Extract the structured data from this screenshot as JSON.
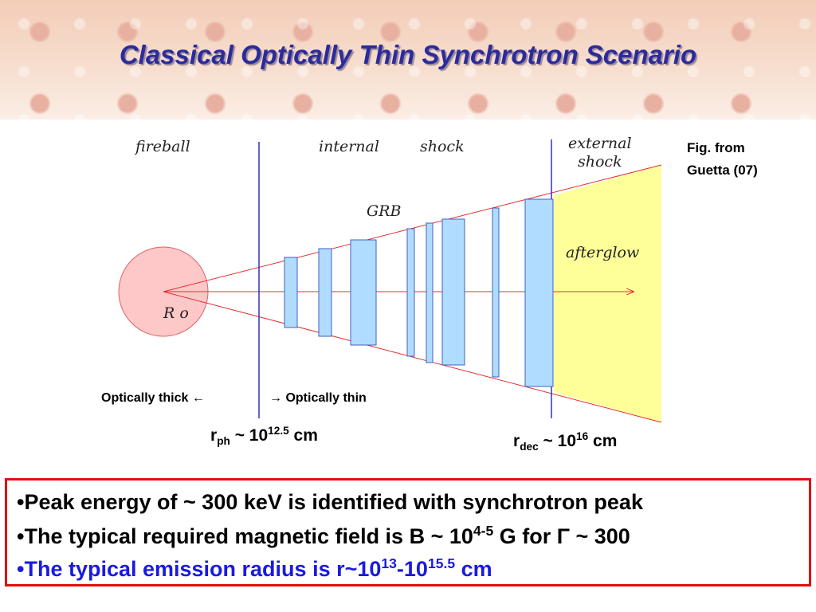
{
  "title": "Classical Optically Thin Synchrotron Scenario",
  "figure": {
    "labels": {
      "fireball": "fireball",
      "internal": "internal",
      "shock": "shock",
      "external_shock": [
        "external",
        "shock"
      ],
      "grb": "GRB",
      "afterglow": "afterglow",
      "radius": "R o"
    },
    "credit": [
      "Fig. from",
      "Guetta (07)"
    ]
  },
  "annotations": {
    "thick": "Optically thick ←",
    "thin": "→ Optically thin",
    "r_ph": [
      "r",
      "ph",
      " ~ 10",
      "12.5",
      " cm"
    ],
    "r_dec": [
      "r",
      "dec",
      " ~ 10",
      "16",
      " cm"
    ]
  },
  "bullets": [
    [
      "•Peak energy of ~ 300 keV is identified with synchrotron peak"
    ],
    [
      "•The typical required magnetic field is B ~ 10",
      "4-5",
      " G for Γ ~ 300"
    ],
    [
      "•The typical emission radius is r~10",
      "13",
      "-10",
      "15.5",
      " cm"
    ]
  ]
}
